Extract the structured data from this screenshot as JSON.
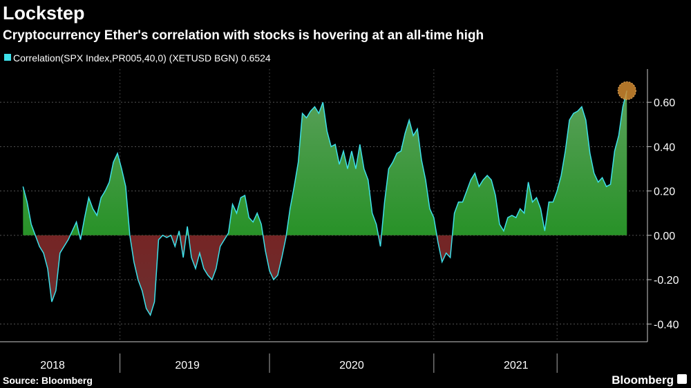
{
  "chart_data": {
    "type": "area",
    "title": "Lockstep",
    "subtitle": "Cryptocurrency Ether's correlation with stocks is hovering at an all-time high",
    "source": "Source: Bloomberg",
    "brand": "Bloomberg",
    "xlim": [
      2018.36,
      2022.3
    ],
    "xticks": [
      {
        "value": 2018.68,
        "label": "2018"
      },
      {
        "value": 2019.5,
        "label": "2019"
      },
      {
        "value": 2020.5,
        "label": "2020"
      },
      {
        "value": 2021.5,
        "label": "2021"
      }
    ],
    "ylim": [
      -0.48,
      0.75
    ],
    "yticks": [
      {
        "value": -0.4,
        "label": "-0.40"
      },
      {
        "value": -0.2,
        "label": "-0.20"
      },
      {
        "value": 0,
        "label": "0.00"
      },
      {
        "value": 0.2,
        "label": "0.20"
      },
      {
        "value": 0.4,
        "label": "0.40"
      },
      {
        "value": 0.6,
        "label": "0.60"
      }
    ],
    "grid": true,
    "fill_above": "#1f8f1f",
    "fill_below": "#8a1010",
    "highlight_color": "#d08a30",
    "x": [
      2018.5,
      2018.525,
      2018.55,
      2018.575,
      2018.6,
      2018.625,
      2018.65,
      2018.675,
      2018.7,
      2018.725,
      2018.75,
      2018.775,
      2018.8,
      2018.825,
      2018.85,
      2018.875,
      2018.9,
      2018.925,
      2018.95,
      2018.975,
      2019.0,
      2019.025,
      2019.05,
      2019.075,
      2019.1,
      2019.125,
      2019.15,
      2019.175,
      2019.2,
      2019.225,
      2019.25,
      2019.275,
      2019.3,
      2019.325,
      2019.35,
      2019.375,
      2019.4,
      2019.425,
      2019.45,
      2019.475,
      2019.5,
      2019.525,
      2019.55,
      2019.575,
      2019.6,
      2019.625,
      2019.65,
      2019.675,
      2019.7,
      2019.725,
      2019.75,
      2019.775,
      2019.8,
      2019.825,
      2019.85,
      2019.875,
      2019.9,
      2019.925,
      2019.95,
      2019.975,
      2020.0,
      2020.025,
      2020.05,
      2020.075,
      2020.1,
      2020.125,
      2020.15,
      2020.175,
      2020.2,
      2020.225,
      2020.25,
      2020.275,
      2020.3,
      2020.325,
      2020.35,
      2020.375,
      2020.4,
      2020.425,
      2020.45,
      2020.475,
      2020.5,
      2020.525,
      2020.55,
      2020.575,
      2020.6,
      2020.625,
      2020.65,
      2020.675,
      2020.7,
      2020.725,
      2020.75,
      2020.775,
      2020.8,
      2020.825,
      2020.85,
      2020.875,
      2020.9,
      2020.925,
      2020.95,
      2020.975,
      2021.0,
      2021.025,
      2021.05,
      2021.075,
      2021.1,
      2021.125,
      2021.15,
      2021.175,
      2021.2,
      2021.225,
      2021.25,
      2021.275,
      2021.3,
      2021.325,
      2021.35,
      2021.375,
      2021.4,
      2021.425,
      2021.45,
      2021.475,
      2021.5,
      2021.525,
      2021.55,
      2021.575,
      2021.6,
      2021.625,
      2021.65,
      2021.675,
      2021.7,
      2021.725,
      2021.75,
      2021.775,
      2021.8,
      2021.825,
      2021.85,
      2021.875,
      2021.9,
      2021.925,
      2021.95,
      2021.975,
      2022.0,
      2022.025,
      2022.05,
      2022.075,
      2022.1,
      2022.125,
      2022.15,
      2022.175
    ],
    "series": [
      {
        "name": "Correlation(SPX Index,PR005,40,0) (XETUSD BGN) 0.6524",
        "color": "#3ee0ea",
        "values": [
          0.22,
          0.15,
          0.05,
          0.0,
          -0.05,
          -0.08,
          -0.15,
          -0.3,
          -0.25,
          -0.08,
          -0.05,
          -0.02,
          0.02,
          0.06,
          -0.02,
          0.08,
          0.17,
          0.12,
          0.09,
          0.17,
          0.2,
          0.24,
          0.33,
          0.37,
          0.3,
          0.22,
          0.0,
          -0.12,
          -0.2,
          -0.25,
          -0.33,
          -0.36,
          -0.3,
          -0.02,
          0.0,
          -0.01,
          0.0,
          -0.05,
          0.02,
          -0.1,
          0.04,
          -0.1,
          -0.15,
          -0.08,
          -0.15,
          -0.18,
          -0.2,
          -0.15,
          -0.05,
          -0.02,
          0.01,
          0.14,
          0.1,
          0.17,
          0.18,
          0.08,
          0.06,
          0.1,
          0.05,
          -0.07,
          -0.16,
          -0.2,
          -0.18,
          -0.1,
          -0.01,
          0.12,
          0.22,
          0.33,
          0.55,
          0.53,
          0.56,
          0.58,
          0.55,
          0.6,
          0.47,
          0.4,
          0.41,
          0.32,
          0.38,
          0.3,
          0.38,
          0.3,
          0.41,
          0.3,
          0.25,
          0.1,
          0.05,
          -0.05,
          0.15,
          0.3,
          0.33,
          0.37,
          0.38,
          0.46,
          0.52,
          0.45,
          0.48,
          0.34,
          0.25,
          0.12,
          0.08,
          -0.03,
          -0.12,
          -0.08,
          -0.1,
          0.1,
          0.15,
          0.15,
          0.2,
          0.25,
          0.28,
          0.22,
          0.25,
          0.27,
          0.25,
          0.18,
          0.05,
          0.02,
          0.08,
          0.09,
          0.08,
          0.12,
          0.1,
          0.24,
          0.15,
          0.17,
          0.12,
          0.02,
          0.15,
          0.15,
          0.2,
          0.27,
          0.38,
          0.52,
          0.55,
          0.56,
          0.58,
          0.52,
          0.37,
          0.28,
          0.24,
          0.26,
          0.22,
          0.23,
          0.38,
          0.45,
          0.58,
          0.6524
        ]
      }
    ]
  }
}
